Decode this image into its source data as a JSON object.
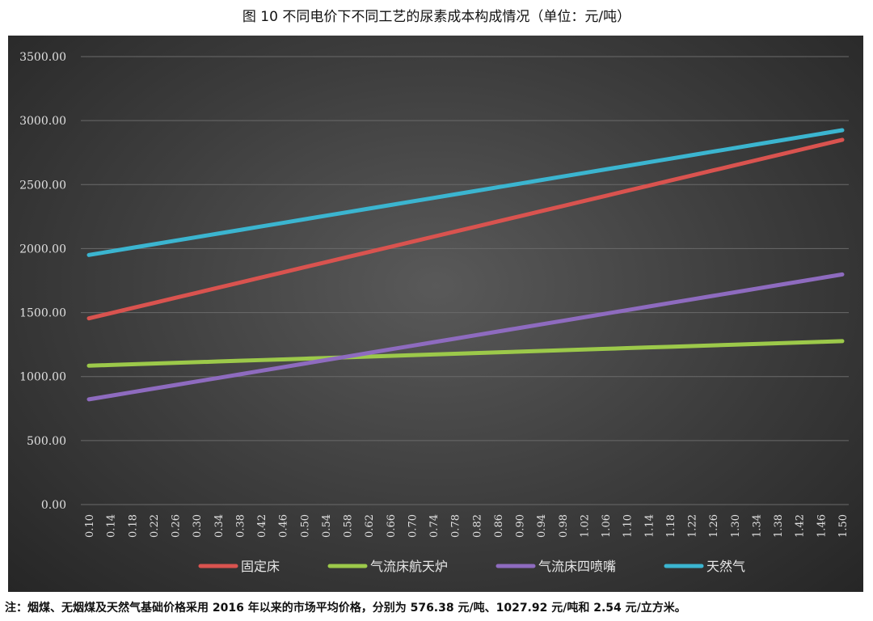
{
  "title": "图 10  不同电价下不同工艺的尿素成本构成情况（单位：元/吨）",
  "note": "注：烟煤、无烟煤及天然气基础价格采用 2016 年以来的市场平均价格，分别为 576.38 元/吨、1027.92 元/吨和 2.54 元/立方米。",
  "chart_data": {
    "type": "line",
    "x_start": 0.1,
    "x_end": 1.5,
    "x_step": 0.04,
    "ylim": [
      0,
      3500
    ],
    "yticks": [
      "0.00",
      "500.00",
      "1000.00",
      "1500.00",
      "2000.00",
      "2500.00",
      "3000.00",
      "3500.00"
    ],
    "grid": true,
    "legend": "bottom",
    "series": [
      {
        "name": "固定床",
        "color": "#d9534f",
        "start": 1455,
        "end": 2850
      },
      {
        "name": "气流床航天炉",
        "color": "#9cc94a",
        "start": 1085,
        "end": 1277
      },
      {
        "name": "气流床四喷嘴",
        "color": "#8e6bbf",
        "start": 822,
        "end": 1798
      },
      {
        "name": "天然气",
        "color": "#3bb5d0",
        "start": 1950,
        "end": 2925
      }
    ]
  }
}
